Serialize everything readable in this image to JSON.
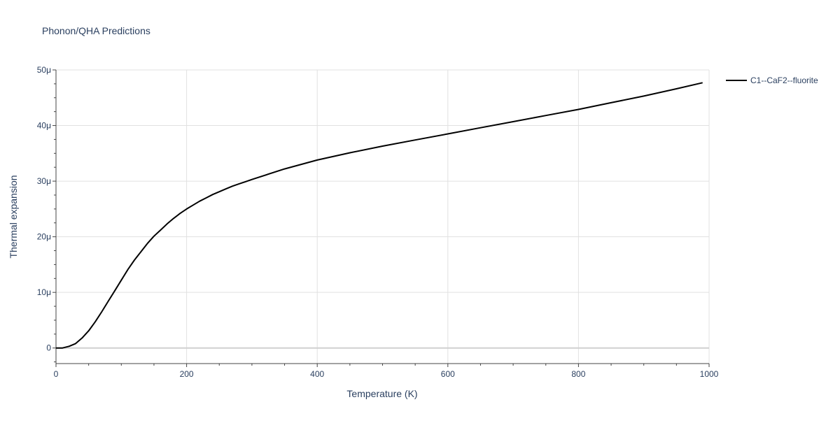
{
  "chart_data": {
    "type": "line",
    "title": "Phonon/QHA Predictions",
    "xlabel": "Temperature (K)",
    "ylabel": "Thermal expansion",
    "xlim": [
      0,
      1000
    ],
    "ylim": [
      -2.8e-06,
      5e-05
    ],
    "x_ticks": [
      0,
      200,
      400,
      600,
      800,
      1000
    ],
    "x_tick_labels": [
      "0",
      "200",
      "400",
      "600",
      "800",
      "1000"
    ],
    "y_ticks": [
      0,
      1e-05,
      2e-05,
      3e-05,
      4e-05,
      5e-05
    ],
    "y_tick_labels": [
      "0",
      "10μ",
      "20μ",
      "30μ",
      "40μ",
      "50μ"
    ],
    "grid": true,
    "legend_position": "top-right",
    "series": [
      {
        "name": "C1--CaF2--fluorite",
        "color": "#000000",
        "x": [
          0,
          10,
          20,
          30,
          40,
          50,
          60,
          70,
          80,
          90,
          100,
          110,
          120,
          130,
          140,
          150,
          160,
          170,
          180,
          190,
          200,
          210,
          220,
          230,
          240,
          250,
          260,
          270,
          280,
          290,
          300,
          350,
          400,
          450,
          500,
          550,
          600,
          650,
          700,
          750,
          800,
          850,
          900,
          950,
          990
        ],
        "y": [
          0,
          0.0,
          3e-07,
          8e-07,
          1.8e-06,
          3.1e-06,
          4.7e-06,
          6.5e-06,
          8.4e-06,
          1.03e-05,
          1.22e-05,
          1.41e-05,
          1.58e-05,
          1.73e-05,
          1.88e-05,
          2.01e-05,
          2.12e-05,
          2.23e-05,
          2.33e-05,
          2.42e-05,
          2.5e-05,
          2.57e-05,
          2.64e-05,
          2.7e-05,
          2.76e-05,
          2.81e-05,
          2.86e-05,
          2.91e-05,
          2.95e-05,
          2.99e-05,
          3.03e-05,
          3.22e-05,
          3.38e-05,
          3.51e-05,
          3.63e-05,
          3.74e-05,
          3.85e-05,
          3.96e-05,
          4.07e-05,
          4.18e-05,
          4.29e-05,
          4.41e-05,
          4.53e-05,
          4.66e-05,
          4.77e-05
        ]
      }
    ]
  }
}
